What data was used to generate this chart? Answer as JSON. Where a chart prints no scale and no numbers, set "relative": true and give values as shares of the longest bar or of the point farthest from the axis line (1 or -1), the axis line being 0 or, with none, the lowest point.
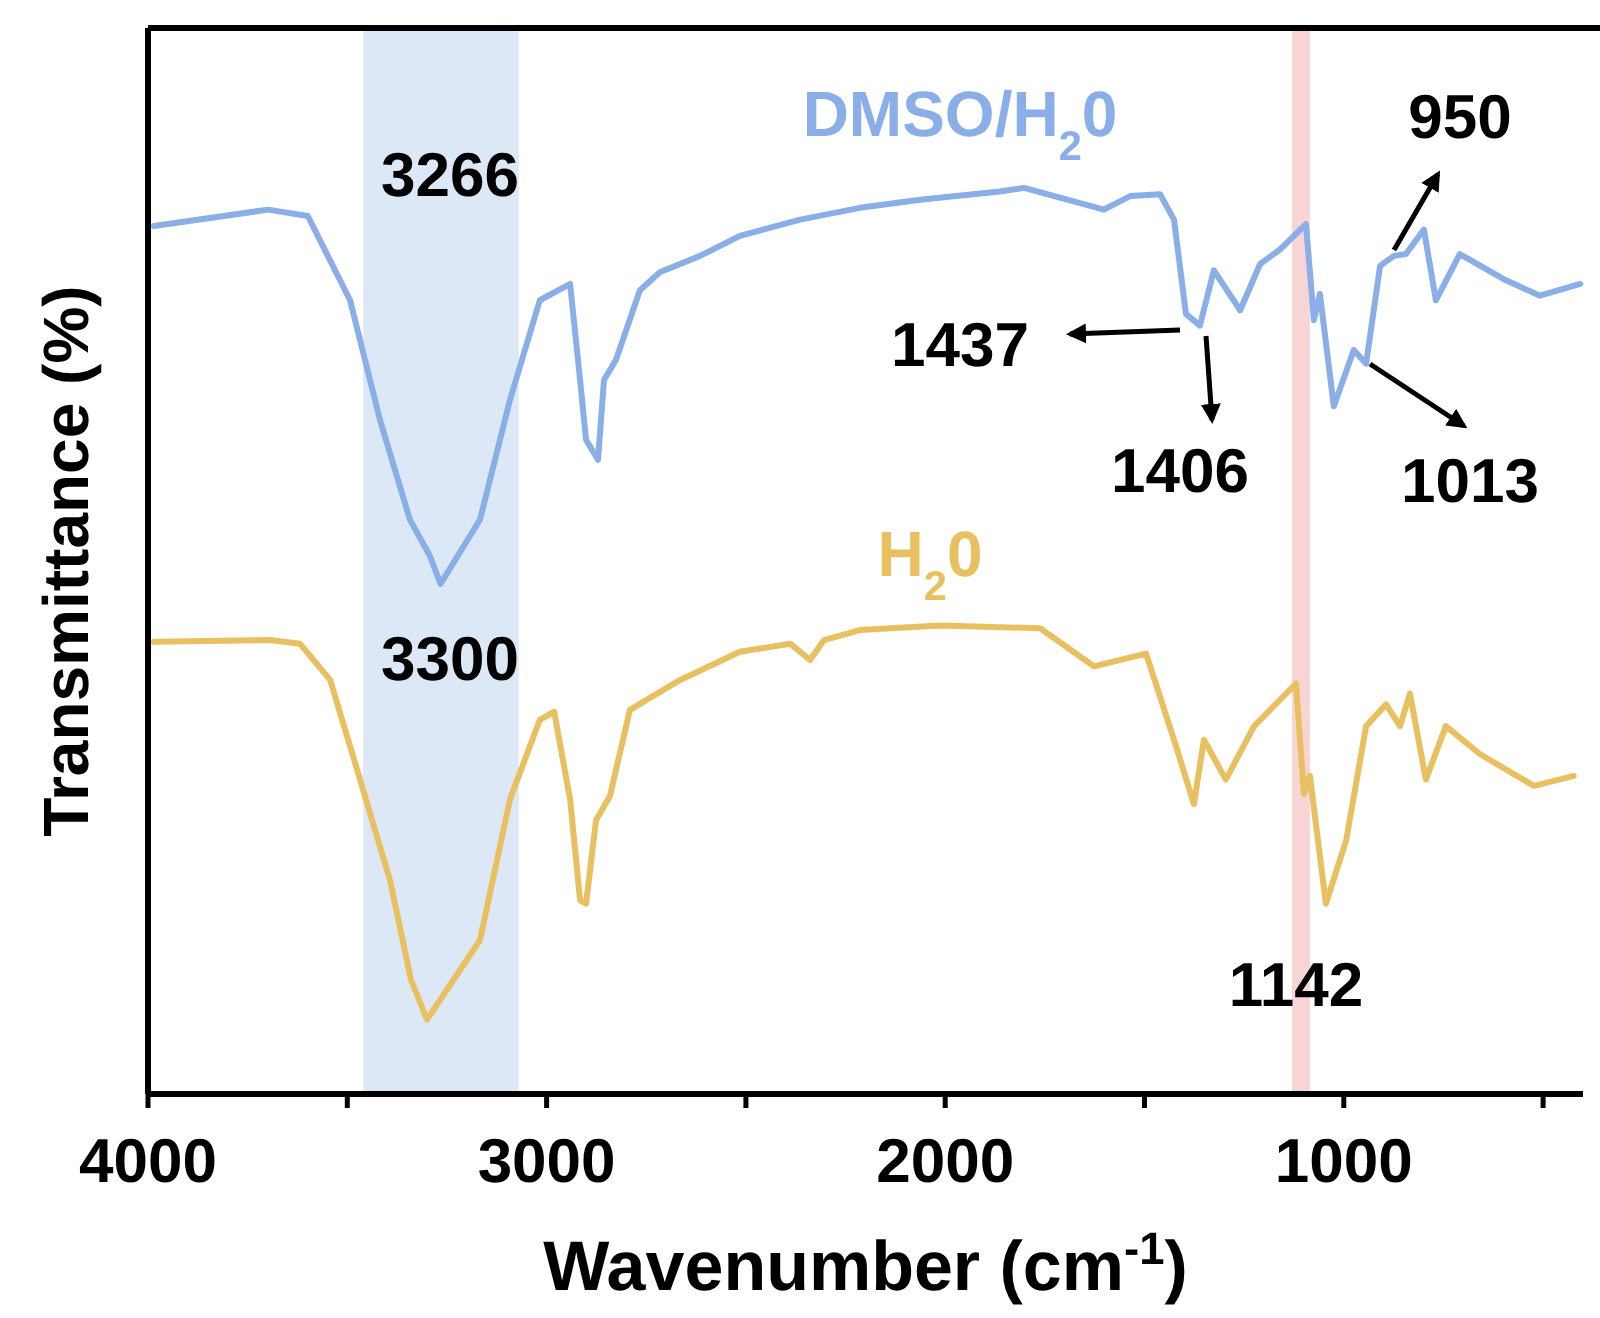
{
  "chart_data": {
    "type": "line",
    "relative": true,
    "xlabel": "Wavenumber (cm$^{-1}$)",
    "ylabel": "Transmittance (%)",
    "xlim": [
      4000,
      400
    ],
    "xticks": [
      4000,
      {
        "value": 3500,
        "label": null
      },
      3000,
      {
        "value": 2500,
        "label": null
      },
      2000,
      {
        "value": 1500,
        "label": null
      },
      1000,
      {
        "value": 500,
        "label": null
      }
    ],
    "tick_labels": "x",
    "grid": false,
    "bands": [
      {
        "axis": "x",
        "from": 3460,
        "to": 3070,
        "color": "#dce8f5"
      },
      {
        "axis": "x",
        "from": 1130,
        "to": 1085,
        "color": "#f8d5d5"
      }
    ],
    "series": [
      {
        "name": "DMSO/H$_{2}$0",
        "color": "#8aaee8",
        "x": [
          3985,
          3699,
          3599,
          3493,
          3418,
          3343,
          3293,
          3266,
          3167,
          3092,
          3017,
          2941,
          2916,
          2901,
          2871,
          2856,
          2826,
          2766,
          2716,
          2615,
          2515,
          2364,
          2214,
          2063,
          1863,
          1802,
          1602,
          1536,
          1461,
          1426,
          1396,
          1361,
          1326,
          1260,
          1210,
          1160,
          1095,
          1075,
          1060,
          1025,
          975,
          944,
          909,
          874,
          844,
          799,
          769,
          709,
          593,
          508,
          407
        ],
        "values": [
          0.958,
          0.976,
          0.969,
          0.876,
          0.744,
          0.634,
          0.594,
          0.563,
          0.634,
          0.766,
          0.876,
          0.894,
          0.788,
          0.722,
          0.7,
          0.788,
          0.81,
          0.887,
          0.907,
          0.925,
          0.947,
          0.965,
          0.978,
          0.987,
          0.996,
          1.0,
          0.976,
          0.991,
          0.993,
          0.965,
          0.861,
          0.848,
          0.909,
          0.865,
          0.916,
          0.932,
          0.96,
          0.854,
          0.883,
          0.759,
          0.821,
          0.806,
          0.914,
          0.925,
          0.927,
          0.954,
          0.876,
          0.927,
          0.898,
          0.881,
          0.894
        ]
      },
      {
        "name": "H$_{2}$0",
        "color": "#e8c060",
        "x": [
          3985,
          3694,
          3619,
          3543,
          3468,
          3393,
          3340,
          3300,
          3167,
          3092,
          3017,
          2981,
          2941,
          2916,
          2901,
          2876,
          2841,
          2791,
          2665,
          2515,
          2389,
          2339,
          2304,
          2214,
          2013,
          1762,
          1627,
          1496,
          1426,
          1376,
          1351,
          1296,
          1225,
          1120,
          1100,
          1085,
          1045,
          994,
          944,
          894,
          859,
          834,
          794,
          744,
          658,
          523,
          423
        ],
        "values": [
          0.499,
          0.501,
          0.497,
          0.457,
          0.347,
          0.236,
          0.126,
          0.082,
          0.17,
          0.325,
          0.413,
          0.422,
          0.325,
          0.214,
          0.21,
          0.302,
          0.329,
          0.424,
          0.457,
          0.488,
          0.497,
          0.479,
          0.501,
          0.512,
          0.517,
          0.514,
          0.472,
          0.486,
          0.391,
          0.32,
          0.391,
          0.347,
          0.406,
          0.453,
          0.331,
          0.351,
          0.21,
          0.28,
          0.406,
          0.43,
          0.406,
          0.442,
          0.347,
          0.406,
          0.375,
          0.34,
          0.351
        ]
      }
    ],
    "annotations": [
      "3266",
      "3300",
      "1437",
      "1406",
      "950",
      "1013",
      "1142"
    ]
  }
}
